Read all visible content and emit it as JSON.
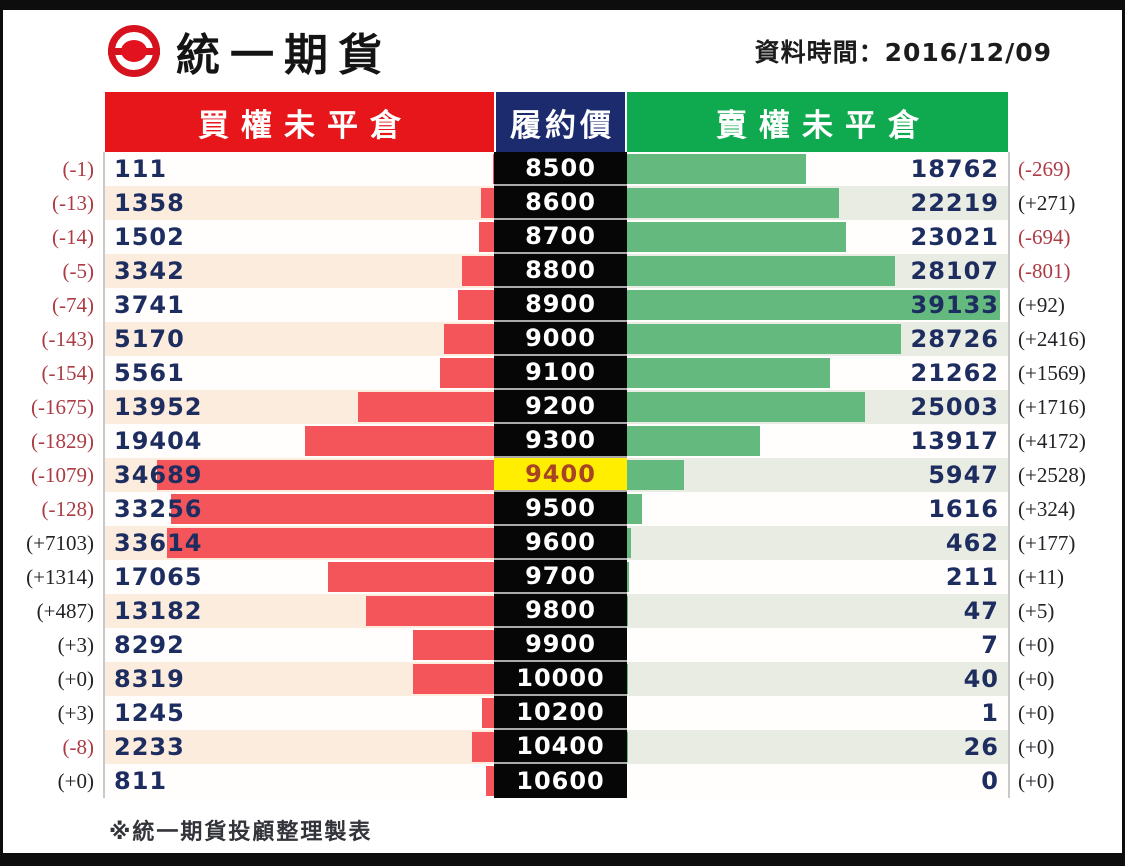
{
  "brand": {
    "title": "統一期貨"
  },
  "timestamp": {
    "label": "資料時間：2016/12/09"
  },
  "table": {
    "headers": {
      "call": "買權未平倉",
      "strike": "履約價",
      "put": "賣權未平倉"
    }
  },
  "footer": {
    "note": "※統一期貨投顧整理製表"
  },
  "colors": {
    "header_call_red": "#e7161b",
    "header_strike_navy": "#1b2b6e",
    "header_put_green": "#0fa94f",
    "call_bar": "#f4555b",
    "put_bar": "#63b97e",
    "value_navy": "#1d2d5f",
    "negative_change": "#ad3b44",
    "positive_change": "#222326",
    "strike_cell_bg": "#060606",
    "highlight_bg": "#ffee00",
    "highlight_text": "#a84325",
    "row_tint_call": "#fcecdd",
    "row_tint_put": "#e9ece3"
  },
  "chart_data": {
    "type": "bar",
    "subtype": "diverging-tornado",
    "categories": [
      "8500",
      "8600",
      "8700",
      "8800",
      "8900",
      "9000",
      "9100",
      "9200",
      "9300",
      "9400",
      "9500",
      "9600",
      "9700",
      "9800",
      "9900",
      "10000",
      "10200",
      "10400",
      "10600"
    ],
    "category_axis_label": "履約價",
    "highlight_category": "9400",
    "axis": {
      "bar_scale_max": 40000,
      "grid": false
    },
    "legend_position": "top",
    "series": [
      {
        "name": "買權未平倉",
        "side": "left",
        "color": "#f4555b",
        "values": [
          111,
          1358,
          1502,
          3342,
          3741,
          5170,
          5561,
          13952,
          19404,
          34689,
          33256,
          33614,
          17065,
          13182,
          8292,
          8319,
          1245,
          2233,
          811
        ],
        "changes": [
          "(-1)",
          "(-13)",
          "(-14)",
          "(-5)",
          "(-74)",
          "(-143)",
          "(-154)",
          "(-1675)",
          "(-1829)",
          "(-1079)",
          "(-128)",
          "(+7103)",
          "(+1314)",
          "(+487)",
          "(+3)",
          "(+0)",
          "(+3)",
          "(-8)",
          "(+0)"
        ]
      },
      {
        "name": "賣權未平倉",
        "side": "right",
        "color": "#63b97e",
        "values": [
          18762,
          22219,
          23021,
          28107,
          39133,
          28726,
          21262,
          25003,
          13917,
          5947,
          1616,
          462,
          211,
          47,
          7,
          40,
          1,
          26,
          0
        ],
        "changes": [
          "(-269)",
          "(+271)",
          "(-694)",
          "(-801)",
          "(+92)",
          "(+2416)",
          "(+1569)",
          "(+1716)",
          "(+4172)",
          "(+2528)",
          "(+324)",
          "(+177)",
          "(+11)",
          "(+5)",
          "(+0)",
          "(+0)",
          "(+0)",
          "(+0)",
          "(+0)"
        ]
      }
    ]
  }
}
